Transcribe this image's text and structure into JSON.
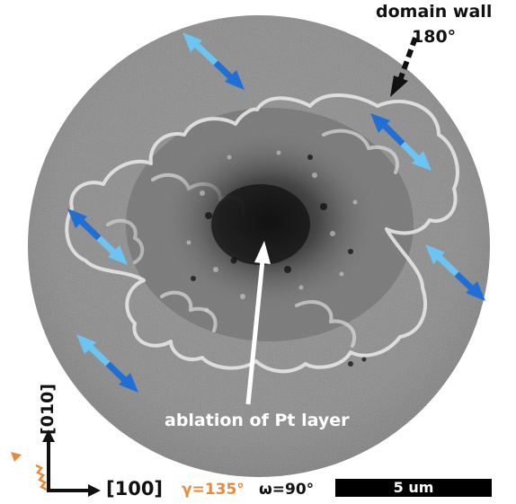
{
  "labels": {
    "domain_wall": "domain wall",
    "domain_wall_angle": "180°",
    "ablation": "ablation of Pt layer",
    "axis_y": "[010]",
    "axis_x": "[100]",
    "gamma": "γ=135°",
    "omega": "ω=90°",
    "scale": "5 um"
  },
  "colors": {
    "arrow_dark_blue": "#1f6fd6",
    "arrow_light_blue": "#6cc4f2",
    "gamma_orange": "#e88a3a",
    "background_gray": "#8a8a8a"
  },
  "image": {
    "description_icons": [
      "circular-field-of-view",
      "domain-wall-loops",
      "dark-ablation-core"
    ]
  }
}
